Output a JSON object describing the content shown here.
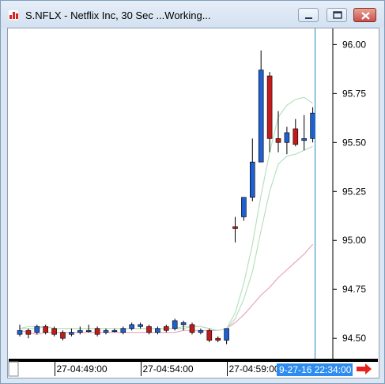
{
  "window": {
    "title": "S.NFLX - Netflix Inc, 30 Sec ...Working...",
    "icon": "chart-app-icon",
    "minimize_icon": "minimize-icon",
    "maximize_icon": "maximize-icon",
    "close_icon": "close-icon"
  },
  "chart_data": {
    "type": "candlestick",
    "title": "",
    "xlabel": "",
    "ylabel": "",
    "ylim": [
      94.42,
      96.05
    ],
    "y_ticks": [
      "96.00",
      "95.75",
      "95.50",
      "95.25",
      "95.00",
      "94.75",
      "94.50"
    ],
    "y_tick_values": [
      96.0,
      95.75,
      95.5,
      95.25,
      95.0,
      94.75,
      94.5
    ],
    "x_ticks": [
      "27-04:49:00",
      "27-04:54:00",
      "27-04:59:00"
    ],
    "x_tick_index": [
      5,
      15,
      25
    ],
    "cursor_label": "9-27-16 22:34:00",
    "cursor_index": 34,
    "up_color": "#1f5fcf",
    "down_color": "#c21b1b",
    "grid": false,
    "candles": [
      {
        "o": 94.52,
        "h": 94.57,
        "l": 94.51,
        "c": 94.54
      },
      {
        "o": 94.54,
        "h": 94.55,
        "l": 94.5,
        "c": 94.52
      },
      {
        "o": 94.53,
        "h": 94.57,
        "l": 94.52,
        "c": 94.56
      },
      {
        "o": 94.56,
        "h": 94.57,
        "l": 94.52,
        "c": 94.53
      },
      {
        "o": 94.55,
        "h": 94.56,
        "l": 94.51,
        "c": 94.52
      },
      {
        "o": 94.53,
        "h": 94.54,
        "l": 94.49,
        "c": 94.5
      },
      {
        "o": 94.52,
        "h": 94.55,
        "l": 94.51,
        "c": 94.53
      },
      {
        "o": 94.53,
        "h": 94.56,
        "l": 94.52,
        "c": 94.54
      },
      {
        "o": 94.54,
        "h": 94.57,
        "l": 94.53,
        "c": 94.54
      },
      {
        "o": 94.55,
        "h": 94.56,
        "l": 94.51,
        "c": 94.52
      },
      {
        "o": 94.53,
        "h": 94.55,
        "l": 94.52,
        "c": 94.54
      },
      {
        "o": 94.54,
        "h": 94.55,
        "l": 94.53,
        "c": 94.54
      },
      {
        "o": 94.53,
        "h": 94.56,
        "l": 94.52,
        "c": 94.55
      },
      {
        "o": 94.55,
        "h": 94.58,
        "l": 94.54,
        "c": 94.57
      },
      {
        "o": 94.56,
        "h": 94.58,
        "l": 94.55,
        "c": 94.57
      },
      {
        "o": 94.56,
        "h": 94.57,
        "l": 94.52,
        "c": 94.53
      },
      {
        "o": 94.53,
        "h": 94.56,
        "l": 94.52,
        "c": 94.55
      },
      {
        "o": 94.56,
        "h": 94.57,
        "l": 94.53,
        "c": 94.54
      },
      {
        "o": 94.55,
        "h": 94.6,
        "l": 94.54,
        "c": 94.59
      },
      {
        "o": 94.57,
        "h": 94.59,
        "l": 94.54,
        "c": 94.58
      },
      {
        "o": 94.57,
        "h": 94.58,
        "l": 94.52,
        "c": 94.53
      },
      {
        "o": 94.53,
        "h": 94.55,
        "l": 94.52,
        "c": 94.54
      },
      {
        "o": 94.54,
        "h": 94.55,
        "l": 94.48,
        "c": 94.49
      },
      {
        "o": 94.5,
        "h": 94.51,
        "l": 94.48,
        "c": 94.49
      },
      {
        "o": 94.49,
        "h": 94.55,
        "l": 94.47,
        "c": 94.55
      },
      {
        "o": 95.07,
        "h": 95.12,
        "l": 94.99,
        "c": 95.06
      },
      {
        "o": 95.12,
        "h": 95.22,
        "l": 95.1,
        "c": 95.22
      },
      {
        "o": 95.22,
        "h": 95.52,
        "l": 95.2,
        "c": 95.4
      },
      {
        "o": 95.4,
        "h": 95.97,
        "l": 95.4,
        "c": 95.87
      },
      {
        "o": 95.84,
        "h": 95.86,
        "l": 95.45,
        "c": 95.52
      },
      {
        "o": 95.52,
        "h": 95.66,
        "l": 95.45,
        "c": 95.5
      },
      {
        "o": 95.5,
        "h": 95.58,
        "l": 95.44,
        "c": 95.55
      },
      {
        "o": 95.57,
        "h": 95.62,
        "l": 95.48,
        "c": 95.49
      },
      {
        "o": 95.51,
        "h": 95.64,
        "l": 95.46,
        "c": 95.52
      },
      {
        "o": 95.52,
        "h": 95.68,
        "l": 95.5,
        "c": 95.65
      }
    ],
    "overlays": [
      {
        "color": "#e7a7bd",
        "values": [
          94.54,
          94.53,
          94.52,
          94.53,
          94.53,
          94.53,
          94.53,
          94.53,
          94.53,
          94.53,
          94.53,
          94.53,
          94.53,
          94.53,
          94.53,
          94.53,
          94.53,
          94.53,
          94.53,
          94.54,
          94.54,
          94.54,
          94.54,
          94.54,
          94.55,
          94.58,
          94.62,
          94.67,
          94.72,
          94.76,
          94.81,
          94.85,
          94.89,
          94.93,
          94.98
        ]
      },
      {
        "color": "#b9e0bf",
        "values": [
          94.55,
          94.56,
          94.56,
          94.56,
          94.55,
          94.55,
          94.55,
          94.55,
          94.55,
          94.55,
          94.55,
          94.55,
          94.55,
          94.55,
          94.55,
          94.55,
          94.55,
          94.55,
          94.55,
          94.55,
          94.56,
          94.56,
          94.55,
          94.54,
          94.55,
          94.6,
          94.7,
          94.84,
          95.05,
          95.25,
          95.39,
          95.43,
          95.44,
          95.46,
          95.48
        ]
      },
      {
        "color": "#b9e0bf",
        "values": [
          94.55,
          94.55,
          94.55,
          94.56,
          94.55,
          94.55,
          94.55,
          94.55,
          94.55,
          94.55,
          94.55,
          94.55,
          94.55,
          94.55,
          94.55,
          94.55,
          94.55,
          94.55,
          94.55,
          94.56,
          94.56,
          94.56,
          94.55,
          94.54,
          94.55,
          94.63,
          94.78,
          94.98,
          95.23,
          95.45,
          95.63,
          95.69,
          95.72,
          95.73,
          95.7
        ]
      }
    ]
  },
  "scroll": {
    "arrow_icon": "scroll-right-arrow-icon"
  }
}
